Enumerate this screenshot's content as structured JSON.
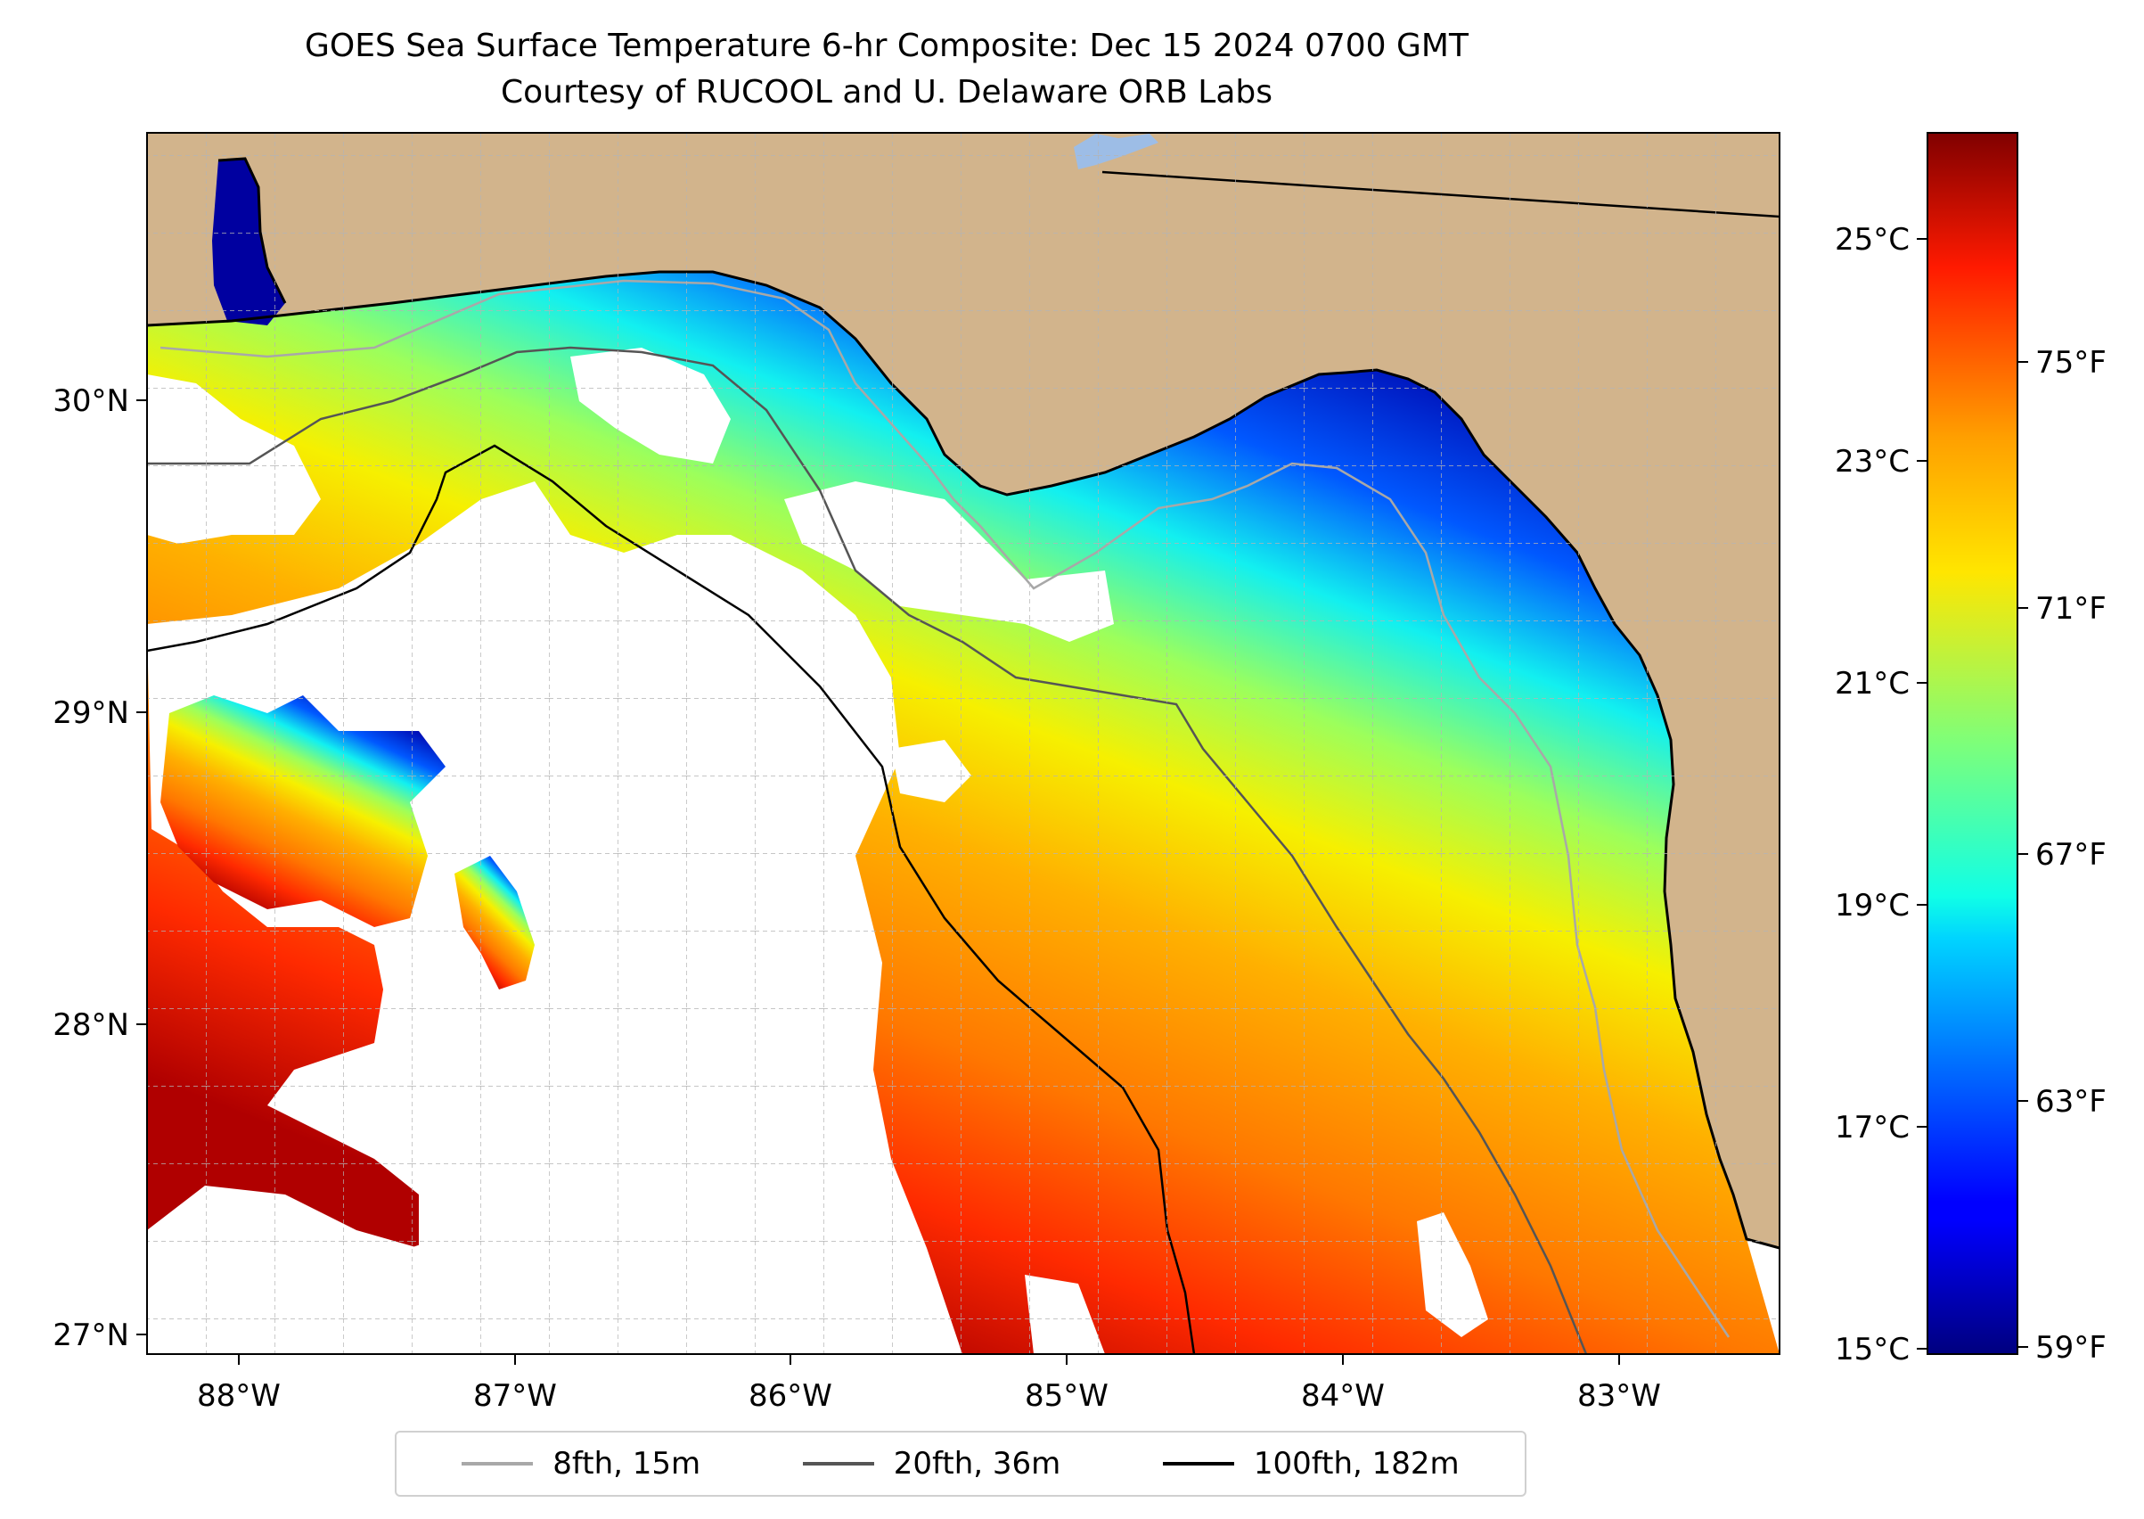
{
  "title": "GOES Sea Surface Temperature 6-hr Composite: Dec 15 2024 0700 GMT",
  "subtitle": "Courtesy of RUCOOL and U. Delaware ORB Labs",
  "axes": {
    "lon_ticks": [
      "88°W",
      "87°W",
      "86°W",
      "85°W",
      "84°W",
      "83°W"
    ],
    "lat_ticks": [
      "30°N",
      "29°N",
      "28°N",
      "27°N"
    ],
    "extent": {
      "lon_min": -88.33,
      "lon_max": -82.42,
      "lat_min": 26.94,
      "lat_max": 30.86
    },
    "grid": true
  },
  "colorbar": {
    "celsius_ticks": [
      "25°C",
      "23°C",
      "21°C",
      "19°C",
      "17°C",
      "15°C"
    ],
    "fahrenheit_ticks": [
      "75°F",
      "71°F",
      "67°F",
      "63°F",
      "59°F"
    ],
    "range_c": [
      15,
      26
    ],
    "colormap": "jet"
  },
  "legend": [
    {
      "label": "8fth, 15m",
      "color": "#a8a8a8"
    },
    {
      "label": "20fth, 36m",
      "color": "#555555"
    },
    {
      "label": "100fth, 182m",
      "color": "#000000"
    }
  ],
  "colors": {
    "land": "#d2b48c",
    "lake": "#9dbde6",
    "no_data": "#ffffff"
  }
}
